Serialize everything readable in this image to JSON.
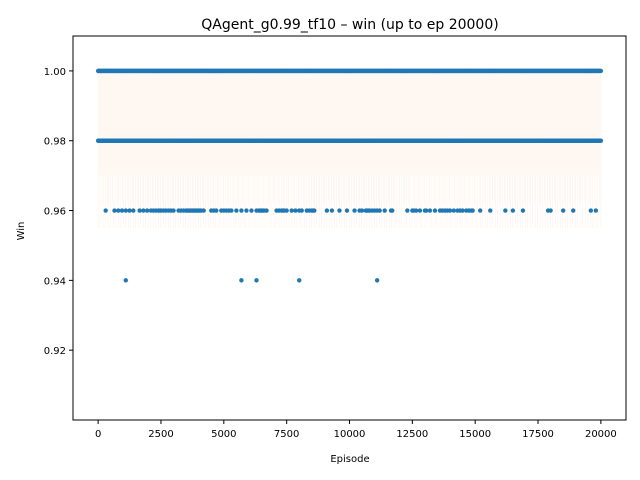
{
  "chart_data": {
    "type": "scatter",
    "title": "QAgent_g0.99_tf10 – win (up to ep 20000)",
    "xlabel": "Episode",
    "ylabel": "Win",
    "xlim": [
      -1000,
      21000
    ],
    "ylim": [
      0.9,
      1.01
    ],
    "xticks": [
      0,
      2500,
      5000,
      7500,
      10000,
      12500,
      15000,
      17500,
      20000
    ],
    "yticks": [
      0.92,
      0.94,
      0.96,
      0.98,
      1.0
    ],
    "ytick_labels": [
      "0.92",
      "0.94",
      "0.96",
      "0.98",
      "1.00"
    ],
    "grid": false,
    "legend": "none",
    "colors": {
      "points": "#1f77b4",
      "band": "#ff7f0e"
    },
    "series": [
      {
        "values_summary": "dense bands spanning all episodes 0-20000",
        "bands": [
          {
            "y": 1.0,
            "x_range": [
              0,
              20000
            ]
          },
          {
            "y": 0.98,
            "x_range": [
              0,
              20000
            ]
          }
        ],
        "points_at_0_96": [
          300,
          650,
          800,
          950,
          1100,
          1250,
          1400,
          1650,
          1800,
          1950,
          2100,
          2200,
          2300,
          2400,
          2450,
          2500,
          2600,
          2700,
          2800,
          2900,
          3000,
          3200,
          3300,
          3400,
          3500,
          3550,
          3600,
          3650,
          3700,
          3750,
          3800,
          3850,
          3900,
          3950,
          4000,
          4050,
          4100,
          4200,
          4500,
          4600,
          4700,
          4900,
          5000,
          5100,
          5200,
          5300,
          5500,
          5700,
          5900,
          6100,
          6300,
          6400,
          6450,
          6500,
          6550,
          6600,
          6700,
          7100,
          7200,
          7300,
          7350,
          7400,
          7500,
          7700,
          7850,
          8000,
          8100,
          8300,
          8400,
          8500,
          8550,
          8600,
          9100,
          9300,
          9600,
          9900,
          10200,
          10400,
          10500,
          10650,
          10700,
          10750,
          10800,
          10900,
          11000,
          11100,
          11200,
          11400,
          11650,
          11700,
          12300,
          12500,
          12550,
          12650,
          12800,
          13000,
          13050,
          13200,
          13400,
          13600,
          13700,
          13800,
          13900,
          14000,
          14150,
          14300,
          14400,
          14500,
          14650,
          14750,
          14850,
          14900,
          15200,
          15600,
          16200,
          16500,
          16900,
          17900,
          18000,
          18500,
          18900,
          19600,
          19800
        ],
        "points_at_0_94": [
          1100,
          5700,
          6300,
          8000,
          11100
        ]
      }
    ]
  }
}
